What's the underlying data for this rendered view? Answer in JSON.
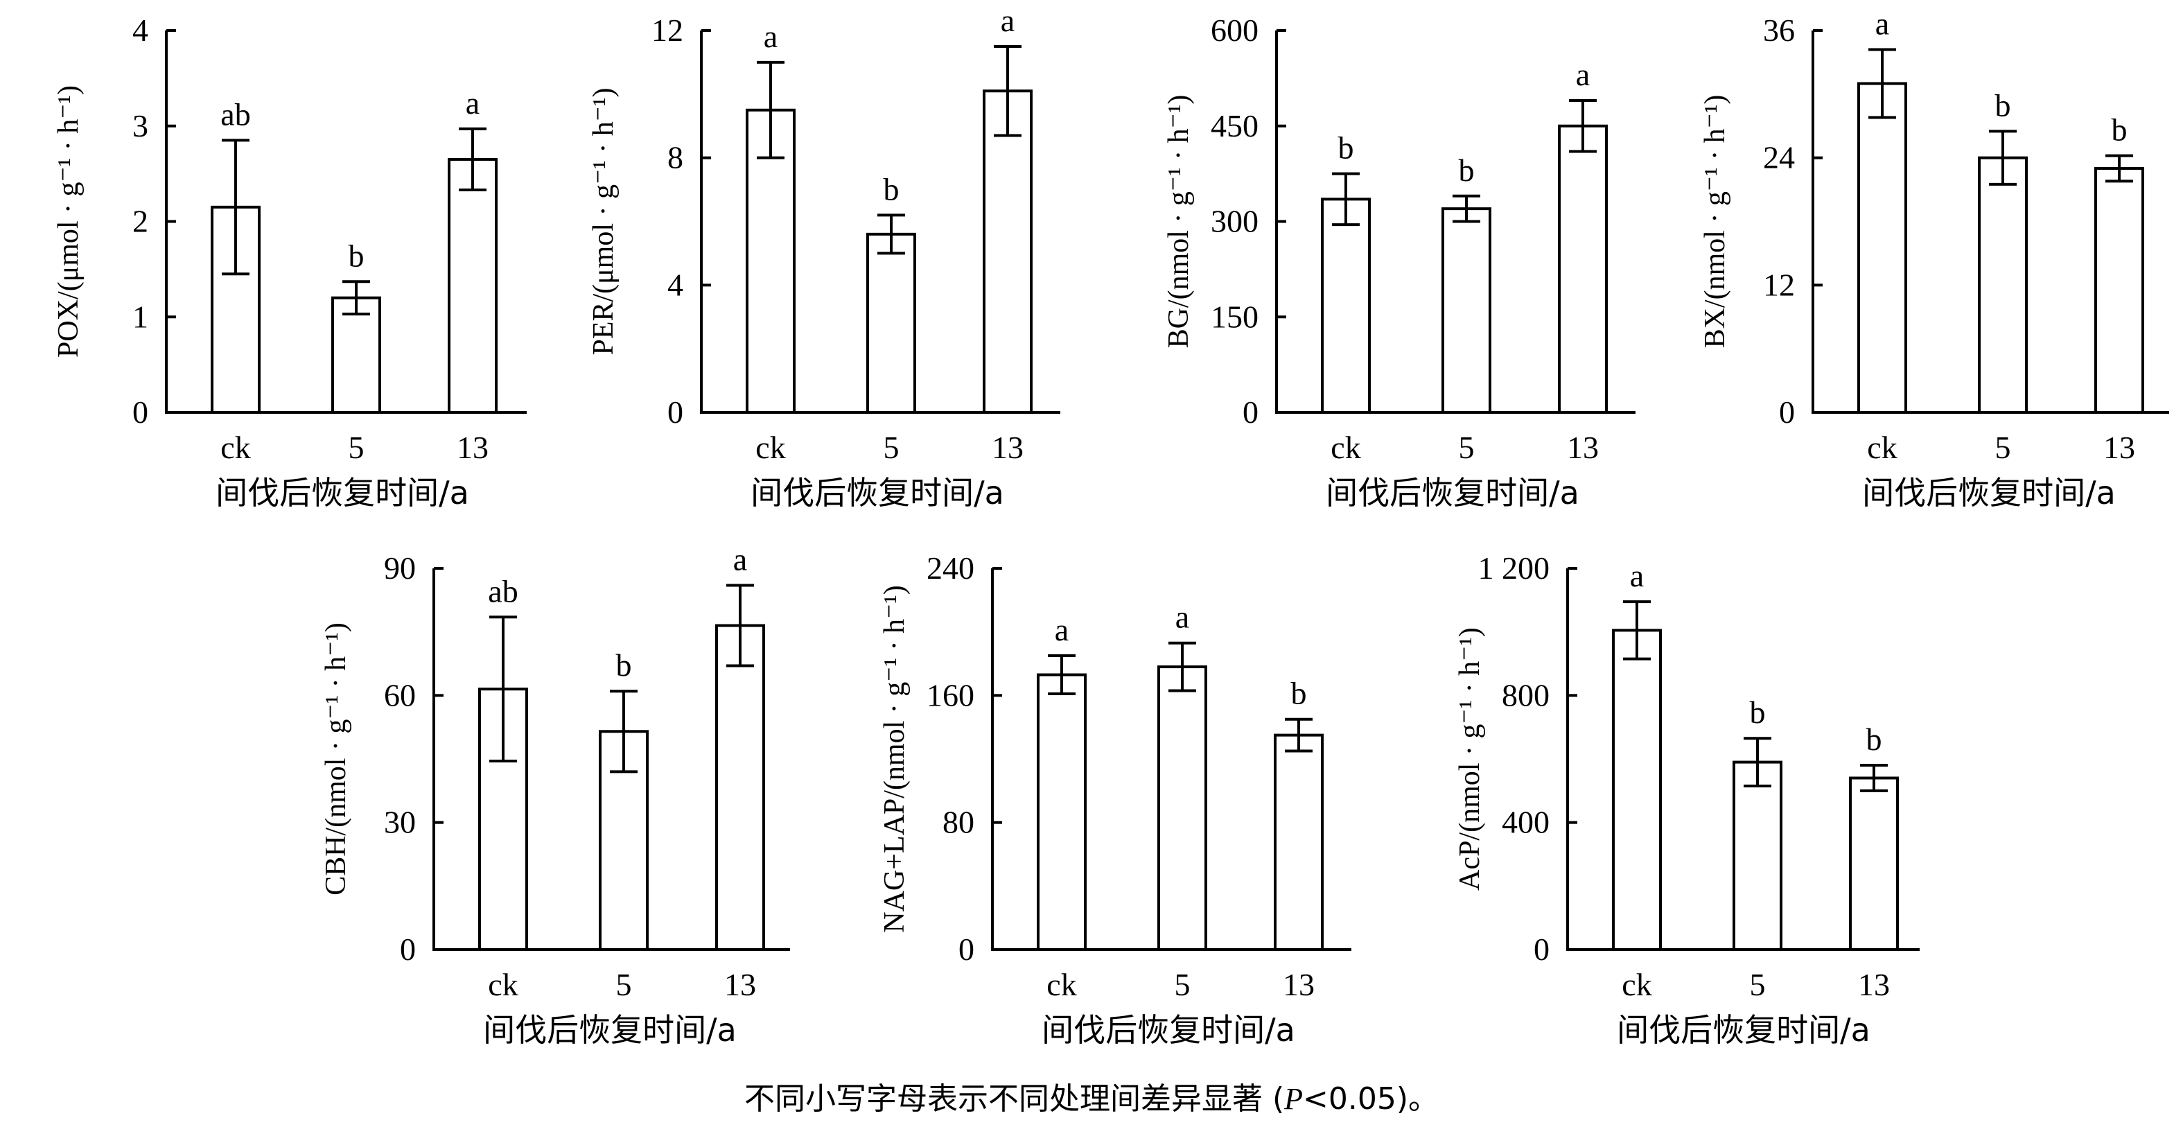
{
  "chart_data": [
    {
      "type": "bar",
      "ylabel": "POX/(μmol · g⁻¹ · h⁻¹)",
      "xlabel": "间伐后恢复时间/a",
      "categories": [
        "ck",
        "5",
        "13"
      ],
      "values": [
        2.15,
        1.2,
        2.65
      ],
      "errors": [
        0.7,
        0.17,
        0.32
      ],
      "significance": [
        "ab",
        "b",
        "a"
      ],
      "ylim": [
        0,
        4
      ],
      "yticks": [
        "0",
        "1",
        "2",
        "3",
        "4"
      ]
    },
    {
      "type": "bar",
      "ylabel": "PER/(μmol · g⁻¹ · h⁻¹)",
      "xlabel": "间伐后恢复时间/a",
      "categories": [
        "ck",
        "5",
        "13"
      ],
      "values": [
        9.5,
        5.6,
        10.1
      ],
      "errors": [
        1.5,
        0.6,
        1.4
      ],
      "significance": [
        "a",
        "b",
        "a"
      ],
      "ylim": [
        0,
        12
      ],
      "yticks": [
        "0",
        "4",
        "8",
        "12"
      ]
    },
    {
      "type": "bar",
      "ylabel": "BG/(nmol · g⁻¹ · h⁻¹)",
      "xlabel": "间伐后恢复时间/a",
      "categories": [
        "ck",
        "5",
        "13"
      ],
      "values": [
        335,
        320,
        450
      ],
      "errors": [
        40,
        20,
        40
      ],
      "significance": [
        "b",
        "b",
        "a"
      ],
      "ylim": [
        0,
        600
      ],
      "yticks": [
        "0",
        "150",
        "300",
        "450",
        "600"
      ]
    },
    {
      "type": "bar",
      "ylabel": "BX/(nmol · g⁻¹ · h⁻¹)",
      "xlabel": "间伐后恢复时间/a",
      "categories": [
        "ck",
        "5",
        "13"
      ],
      "values": [
        31,
        24,
        23
      ],
      "errors": [
        3.2,
        2.5,
        1.2
      ],
      "significance": [
        "a",
        "b",
        "b"
      ],
      "ylim": [
        0,
        36
      ],
      "yticks": [
        "0",
        "12",
        "24",
        "36"
      ]
    },
    {
      "type": "bar",
      "ylabel": "CBH/(nmol · g⁻¹ · h⁻¹)",
      "xlabel": "间伐后恢复时间/a",
      "categories": [
        "ck",
        "5",
        "13"
      ],
      "values": [
        61.5,
        51.5,
        76.5
      ],
      "errors": [
        17,
        9.5,
        9.5
      ],
      "significance": [
        "ab",
        "b",
        "a"
      ],
      "ylim": [
        0,
        90
      ],
      "yticks": [
        "0",
        "30",
        "60",
        "90"
      ]
    },
    {
      "type": "bar",
      "ylabel": "NAG+LAP/(nmol · g⁻¹ · h⁻¹)",
      "xlabel": "间伐后恢复时间/a",
      "categories": [
        "ck",
        "5",
        "13"
      ],
      "values": [
        173,
        178,
        135
      ],
      "errors": [
        12,
        15,
        10
      ],
      "significance": [
        "a",
        "a",
        "b"
      ],
      "ylim": [
        0,
        240
      ],
      "yticks": [
        "0",
        "80",
        "160",
        "240"
      ]
    },
    {
      "type": "bar",
      "ylabel": "AcP/(nmol · g⁻¹ · h⁻¹)",
      "xlabel": "间伐后恢复时间/a",
      "categories": [
        "ck",
        "5",
        "13"
      ],
      "values": [
        1005,
        590,
        540
      ],
      "errors": [
        90,
        75,
        40
      ],
      "significance": [
        "a",
        "b",
        "b"
      ],
      "ylim": [
        0,
        1200
      ],
      "yticks": [
        "0",
        "400",
        "800",
        "1 200"
      ]
    }
  ],
  "caption": {
    "pre": "不同小写字母表示不同处理间差异显著 (",
    "italic": "P",
    "post": "<0.05)。"
  }
}
